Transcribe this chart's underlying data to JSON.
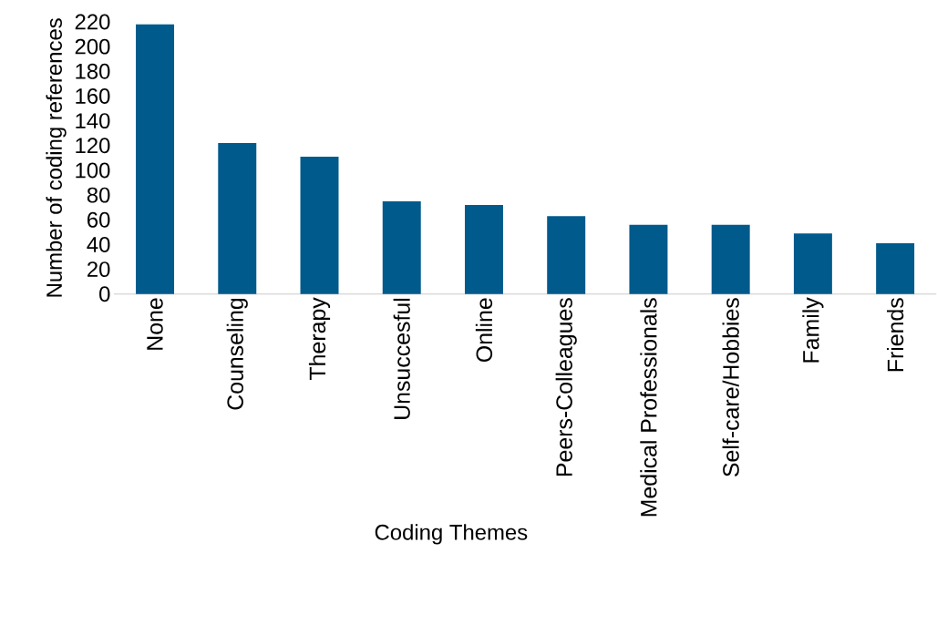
{
  "chart_data": {
    "type": "bar",
    "xlabel": "Coding Themes",
    "ylabel": "Number of coding references",
    "categories": [
      "None",
      "Counseling",
      "Therapy",
      "Unsuccesful",
      "Online",
      "Peers-Colleagues",
      "Medical Professionals",
      "Self-care/Hobbies",
      "Family",
      "Friends"
    ],
    "values": [
      218,
      122,
      111,
      75,
      72,
      63,
      56,
      56,
      49,
      41
    ],
    "color": "#005a8c",
    "ylim": [
      0,
      220
    ],
    "yticks": [
      0,
      20,
      40,
      60,
      80,
      100,
      120,
      140,
      160,
      180,
      200,
      220
    ],
    "grid": false
  }
}
